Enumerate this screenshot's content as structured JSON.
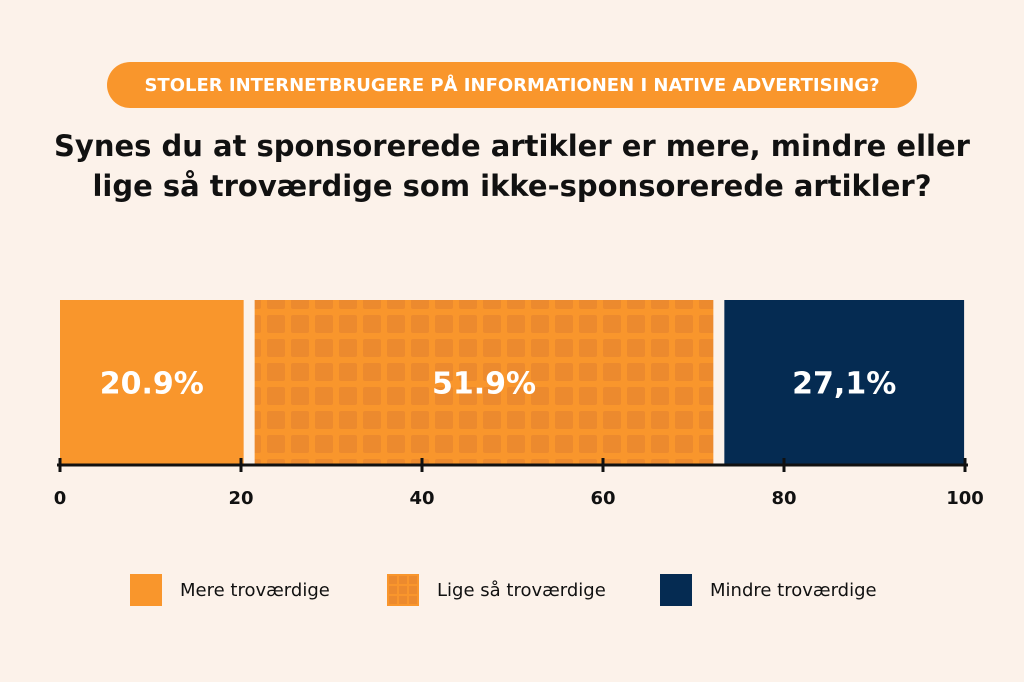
{
  "header": {
    "pill_text": "STOLER INTERNETBRUGERE PÅ INFORMATIONEN I NATIVE ADVERTISING?",
    "title_line1": "Synes du at sponsorerede artikler er mere, mindre eller",
    "title_line2": "lige så troværdige som ikke-sponsorerede artikler?"
  },
  "chart_data": {
    "type": "bar",
    "orientation": "horizontal-stacked",
    "series": [
      {
        "name": "Mere troværdige",
        "value": 20.9,
        "label": "20.9%",
        "color": "#f9962c",
        "pattern": "solid"
      },
      {
        "name": "Lige så troværdige",
        "value": 51.9,
        "label": "51.9%",
        "color": "#f9962c",
        "pattern": "grid"
      },
      {
        "name": "Mindre troværdige",
        "value": 27.1,
        "label": "27,1%",
        "color": "#052b52",
        "pattern": "solid"
      }
    ],
    "xlim": [
      0,
      100
    ],
    "xticks": [
      0,
      20,
      40,
      60,
      80,
      100
    ],
    "xtick_labels": [
      "0",
      "20",
      "40",
      "60",
      "80",
      "100"
    ],
    "legend_position": "bottom"
  },
  "legend": [
    {
      "label": "Mere troværdige"
    },
    {
      "label": "Lige så troværdige"
    },
    {
      "label": "Mindre troværdige"
    }
  ],
  "colors": {
    "background": "#fcf2ea",
    "accent": "#f9962c",
    "grid_tile": "#ec8a2e",
    "navy": "#052b52",
    "axis": "#111111"
  }
}
